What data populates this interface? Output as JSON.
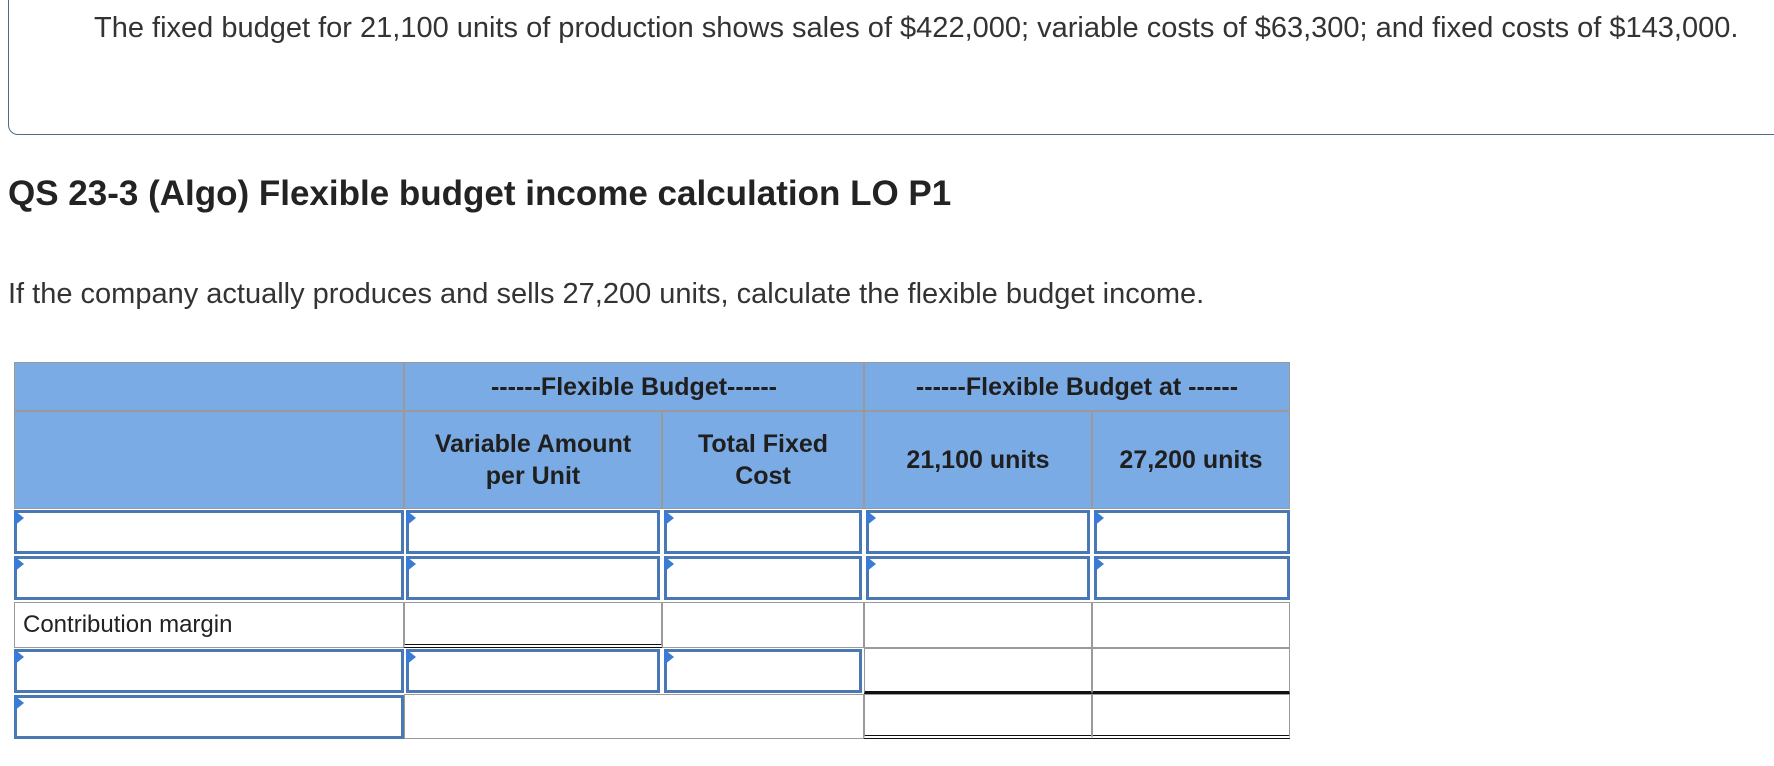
{
  "intro": {
    "text": "The fixed budget for 21,100 units of production shows sales of $422,000; variable costs of $63,300; and fixed costs of $143,000."
  },
  "title": "QS 23-3 (Algo) Flexible budget income calculation LO P1",
  "question": "If the company actually produces and sells 27,200 units, calculate the flexible budget income.",
  "table": {
    "group_headers": {
      "flexible_budget": "------Flexible Budget------",
      "flexible_budget_at": "------Flexible Budget at ------"
    },
    "column_headers": {
      "variable_amount": "Variable Amount per Unit",
      "total_fixed": "Total Fixed Cost",
      "units_1": "21,100 units",
      "units_2": "27,200 units"
    },
    "row_labels": {
      "contribution_margin": "Contribution margin"
    },
    "inputs": {
      "r1_label": "",
      "r1_var": "",
      "r1_fixed": "",
      "r1_u1": "",
      "r1_u2": "",
      "r2_label": "",
      "r2_var": "",
      "r2_fixed": "",
      "r2_u1": "",
      "r2_u2": "",
      "r4_label": "",
      "r4_var": "",
      "r4_fixed": "",
      "r5_label": ""
    }
  },
  "colors": {
    "header_bg": "#7aabe4",
    "input_border": "#4a78b5",
    "marker": "#3a7bd5"
  }
}
